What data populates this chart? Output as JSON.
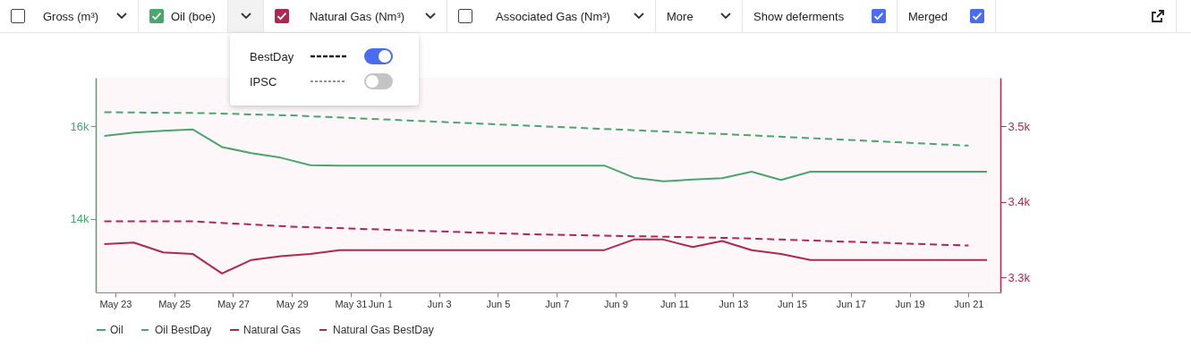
{
  "chart_data": {
    "type": "line",
    "xlim": [
      "--05-22T08:00",
      "--06-22T02:00"
    ],
    "xticks": [
      {
        "value": "--05-23",
        "label": "May 23"
      },
      {
        "value": "--05-25",
        "label": "May 25"
      },
      {
        "value": "--05-27",
        "label": "May 27"
      },
      {
        "value": "--05-29",
        "label": "May 29"
      },
      {
        "value": "--05-31",
        "label": "May 31"
      },
      {
        "value": "--06-01",
        "label": "Jun 1"
      },
      {
        "value": "--06-03",
        "label": "Jun 3"
      },
      {
        "value": "--06-05",
        "label": "Jun 5"
      },
      {
        "value": "--06-07",
        "label": "Jun 7"
      },
      {
        "value": "--06-09",
        "label": "Jun 9"
      },
      {
        "value": "--06-11",
        "label": "Jun 11"
      },
      {
        "value": "--06-13",
        "label": "Jun 13"
      },
      {
        "value": "--06-15",
        "label": "Jun 15"
      },
      {
        "value": "--06-17",
        "label": "Jun 17"
      },
      {
        "value": "--06-19",
        "label": "Jun 19"
      },
      {
        "value": "--06-21",
        "label": "Jun 21"
      }
    ],
    "ylim": [
      12420,
      17040
    ],
    "yticks": [
      {
        "value": 14000,
        "label": "14k"
      },
      {
        "value": 16000,
        "label": "16k"
      }
    ],
    "y2lim": [
      3280,
      3564
    ],
    "y2ticks": [
      {
        "value": 3300,
        "label": "3.3k"
      },
      {
        "value": 3400,
        "label": "3.4k"
      },
      {
        "value": 3500,
        "label": "3.5k"
      }
    ],
    "grid": false,
    "legend": "bottom",
    "series": [
      {
        "name": "Oil",
        "color": "#48a66e",
        "line_style": "solid",
        "x": [
          "--05-22T15:00",
          "--05-23T15:00",
          "--05-24T15:00",
          "--05-25T15:00",
          "--05-26T15:00",
          "--05-27T15:00",
          "--05-28T15:00",
          "--05-29T15:00",
          "--05-30T15:00",
          "--05-31T15:00",
          "--06-01T15:00",
          "--06-02T15:00",
          "--06-03T15:00",
          "--06-04T15:00",
          "--06-05T15:00",
          "--06-06T15:00",
          "--06-07T15:00",
          "--06-08T15:00",
          "--06-09T15:00",
          "--06-10T15:00",
          "--06-11T15:00",
          "--06-12T15:00",
          "--06-13T15:00",
          "--06-14T15:00",
          "--06-15T15:00",
          "--06-16T15:00",
          "--06-17T15:00",
          "--06-18T15:00",
          "--06-19T15:00",
          "--06-20T15:00",
          "--06-21T15:00"
        ],
        "values": [
          15790,
          15860,
          15900,
          15930,
          15550,
          15420,
          15320,
          15160,
          15150,
          15150,
          15150,
          15150,
          15150,
          15150,
          15150,
          15150,
          15150,
          15150,
          14890,
          14810,
          14850,
          14880,
          15020,
          14840,
          15020,
          15020,
          15020,
          15020,
          15020,
          15020,
          15020
        ]
      },
      {
        "name": "Oil BestDay",
        "color": "#48a66e",
        "line_style": "dashed",
        "x": [
          "--05-22T15:00",
          "--05-26",
          "--05-29",
          "--06-06",
          "--06-13",
          "--06-21"
        ],
        "values": [
          16300,
          16280,
          16230,
          16010,
          15820,
          15580
        ]
      },
      {
        "name": "Natural Gas",
        "color": "#b0284f",
        "line_style": "solid",
        "axis": "y2",
        "x": [
          "--05-22T15:00",
          "--05-23T15:00",
          "--05-24T15:00",
          "--05-25T15:00",
          "--05-26T15:00",
          "--05-27T15:00",
          "--05-28T15:00",
          "--05-29T15:00",
          "--05-30T15:00",
          "--05-31T15:00",
          "--06-01T15:00",
          "--06-02T15:00",
          "--06-03T15:00",
          "--06-04T15:00",
          "--06-05T15:00",
          "--06-06T15:00",
          "--06-07T15:00",
          "--06-08T15:00",
          "--06-09T15:00",
          "--06-10T15:00",
          "--06-11T15:00",
          "--06-12T15:00",
          "--06-13T15:00",
          "--06-14T15:00",
          "--06-15T15:00",
          "--06-16T15:00",
          "--06-17T15:00",
          "--06-18T15:00",
          "--06-19T15:00",
          "--06-20T15:00",
          "--06-21T15:00"
        ],
        "values": [
          3344,
          3346,
          3333,
          3331,
          3305,
          3323,
          3328,
          3331,
          3336,
          3336,
          3336,
          3336,
          3336,
          3336,
          3336,
          3336,
          3336,
          3336,
          3350,
          3350,
          3340,
          3348,
          3336,
          3331,
          3323,
          3323,
          3323,
          3323,
          3323,
          3323,
          3323
        ]
      },
      {
        "name": "Natural Gas BestDay",
        "color": "#b0284f",
        "line_style": "dashed",
        "axis": "y2",
        "x": [
          "--05-22T15:00",
          "--05-25T15:00",
          "--05-29",
          "--06-06",
          "--06-13",
          "--06-21"
        ],
        "values": [
          3374,
          3374,
          3367,
          3357,
          3352,
          3342
        ]
      }
    ],
    "annotations": [
      "Gross (m³)",
      "Oil (boe)",
      "Natural Gas (Nm³)",
      "Associated Gas (Nm³)",
      "More",
      "Show deferments",
      "Merged",
      "BestDay",
      "IPSC"
    ]
  }
}
